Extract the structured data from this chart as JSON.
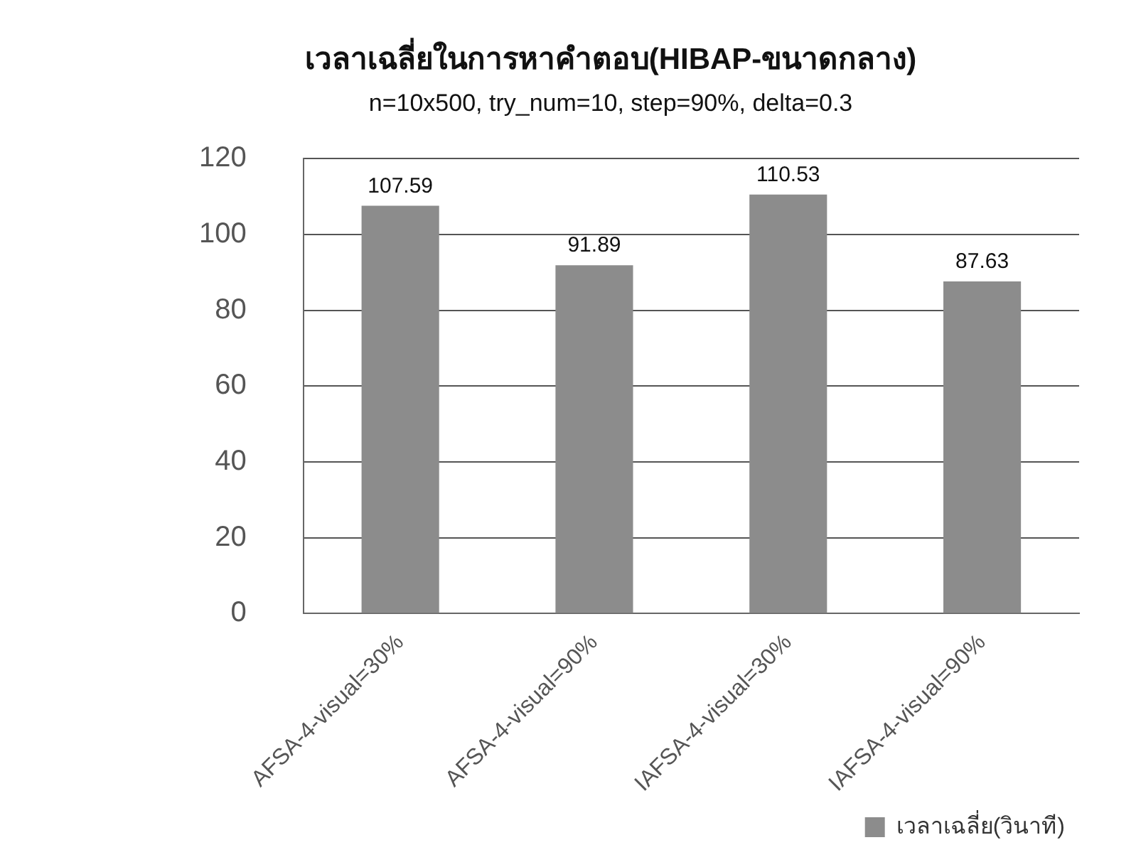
{
  "chart_data": {
    "type": "bar",
    "title": "เวลาเฉลี่ยในการหาคำตอบ(HIBAP-ขนาดกลาง)",
    "subtitle": "n=10x500, try_num=10, step=90%, delta=0.3",
    "categories": [
      "AFSA-4-visual=30%",
      "AFSA-4-visual=90%",
      "IAFSA-4-visual=30%",
      "IAFSA-4-visual=90%"
    ],
    "series": [
      {
        "name": "เวลาเฉลี่ย(วินาที)",
        "color": "#8c8c8c",
        "values": [
          107.59,
          91.89,
          110.53,
          87.63
        ]
      }
    ],
    "ylim": [
      0,
      120
    ],
    "yticks": [
      0,
      20,
      40,
      60,
      80,
      100,
      120
    ],
    "grid": "y",
    "legend": "bottom right",
    "data_labels": true
  }
}
